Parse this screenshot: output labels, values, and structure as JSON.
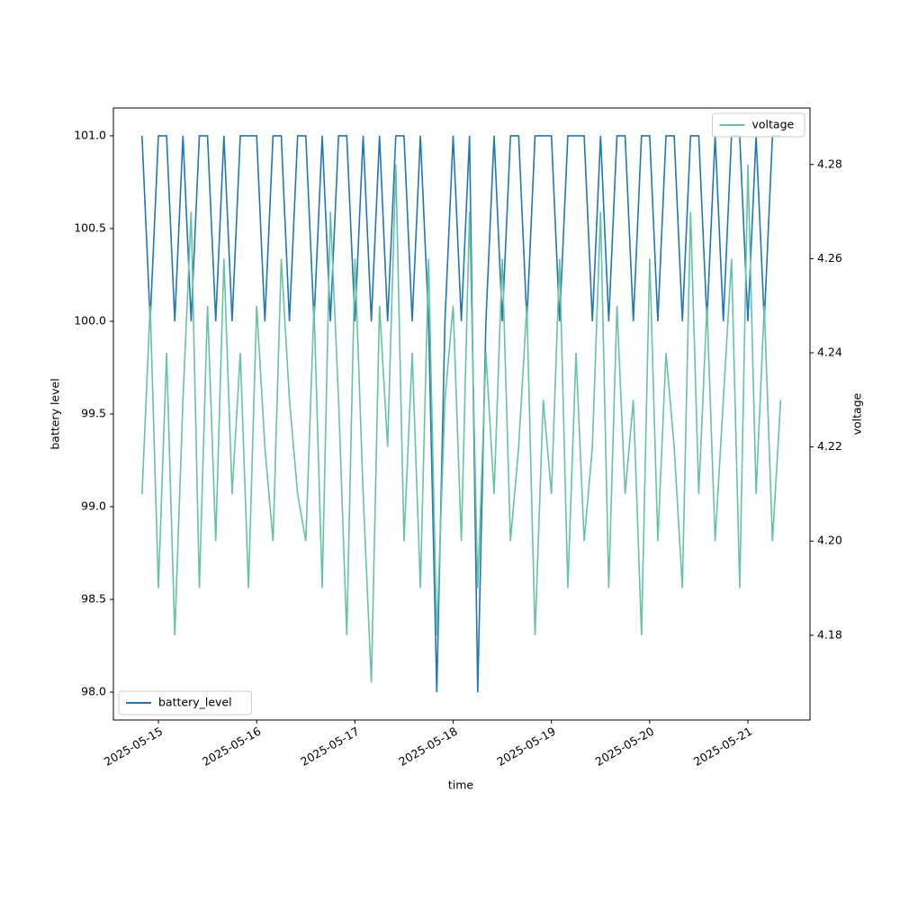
{
  "chart_data": {
    "type": "line",
    "xlabel": "time",
    "ylabel": "battery level",
    "y2label": "voltage",
    "x": [
      "2025-05-14 20:00",
      "2025-05-14 22:00",
      "2025-05-15 00:00",
      "2025-05-15 02:00",
      "2025-05-15 04:00",
      "2025-05-15 06:00",
      "2025-05-15 08:00",
      "2025-05-15 10:00",
      "2025-05-15 12:00",
      "2025-05-15 14:00",
      "2025-05-15 16:00",
      "2025-05-15 18:00",
      "2025-05-15 20:00",
      "2025-05-15 22:00",
      "2025-05-16 00:00",
      "2025-05-16 02:00",
      "2025-05-16 04:00",
      "2025-05-16 06:00",
      "2025-05-16 08:00",
      "2025-05-16 10:00",
      "2025-05-16 12:00",
      "2025-05-16 14:00",
      "2025-05-16 16:00",
      "2025-05-16 18:00",
      "2025-05-16 20:00",
      "2025-05-16 22:00",
      "2025-05-17 00:00",
      "2025-05-17 02:00",
      "2025-05-17 04:00",
      "2025-05-17 06:00",
      "2025-05-17 08:00",
      "2025-05-17 10:00",
      "2025-05-17 12:00",
      "2025-05-17 14:00",
      "2025-05-17 16:00",
      "2025-05-17 18:00",
      "2025-05-17 20:00",
      "2025-05-17 22:00",
      "2025-05-18 00:00",
      "2025-05-18 02:00",
      "2025-05-18 04:00",
      "2025-05-18 06:00",
      "2025-05-18 08:00",
      "2025-05-18 10:00",
      "2025-05-18 12:00",
      "2025-05-18 14:00",
      "2025-05-18 16:00",
      "2025-05-18 18:00",
      "2025-05-18 20:00",
      "2025-05-18 22:00",
      "2025-05-19 00:00",
      "2025-05-19 02:00",
      "2025-05-19 04:00",
      "2025-05-19 06:00",
      "2025-05-19 08:00",
      "2025-05-19 10:00",
      "2025-05-19 12:00",
      "2025-05-19 14:00",
      "2025-05-19 16:00",
      "2025-05-19 18:00",
      "2025-05-19 20:00",
      "2025-05-19 22:00",
      "2025-05-20 00:00",
      "2025-05-20 02:00",
      "2025-05-20 04:00",
      "2025-05-20 06:00",
      "2025-05-20 08:00",
      "2025-05-20 10:00",
      "2025-05-20 12:00",
      "2025-05-20 14:00",
      "2025-05-20 16:00",
      "2025-05-20 18:00",
      "2025-05-20 20:00",
      "2025-05-20 22:00",
      "2025-05-21 00:00",
      "2025-05-21 02:00",
      "2025-05-21 04:00",
      "2025-05-21 06:00",
      "2025-05-21 08:00"
    ],
    "series": [
      {
        "name": "battery_level",
        "color": "#1f77b4",
        "legend": "lower left",
        "values": [
          101,
          100,
          101,
          101,
          100,
          101,
          100,
          101,
          101,
          100,
          101,
          100,
          101,
          101,
          101,
          100,
          101,
          101,
          100,
          101,
          101,
          100,
          101,
          100,
          101,
          101,
          100,
          101,
          100,
          101,
          100,
          101,
          101,
          100,
          101,
          100,
          98,
          100,
          101,
          100,
          101,
          98,
          100,
          101,
          100,
          101,
          101,
          100,
          101,
          101,
          101,
          100,
          101,
          101,
          101,
          100,
          101,
          100,
          101,
          101,
          100,
          101,
          101,
          100,
          101,
          101,
          100,
          101,
          101,
          100,
          101,
          100,
          101,
          101,
          100,
          101,
          100,
          101,
          101
        ]
      },
      {
        "name": "voltage",
        "color": "#66c2a5",
        "axis": "y2",
        "legend": "upper right",
        "values": [
          4.21,
          4.25,
          4.19,
          4.24,
          4.18,
          4.23,
          4.27,
          4.19,
          4.25,
          4.2,
          4.26,
          4.21,
          4.24,
          4.19,
          4.25,
          4.22,
          4.2,
          4.26,
          4.23,
          4.21,
          4.2,
          4.25,
          4.19,
          4.27,
          4.23,
          4.18,
          4.26,
          4.21,
          4.17,
          4.25,
          4.22,
          4.28,
          4.2,
          4.24,
          4.19,
          4.26,
          4.18,
          4.23,
          4.25,
          4.2,
          4.27,
          4.19,
          4.24,
          4.21,
          4.26,
          4.2,
          4.22,
          4.25,
          4.18,
          4.23,
          4.21,
          4.26,
          4.19,
          4.24,
          4.2,
          4.22,
          4.27,
          4.19,
          4.25,
          4.21,
          4.23,
          4.18,
          4.26,
          4.2,
          4.24,
          4.22,
          4.19,
          4.27,
          4.21,
          4.25,
          4.2,
          4.23,
          4.26,
          4.19,
          4.28,
          4.21,
          4.25,
          4.2,
          4.23
        ]
      }
    ],
    "xlim": [
      "2025-05-14 13:00",
      "2025-05-21 15:10"
    ],
    "xticks": [
      "2025-05-15",
      "2025-05-16",
      "2025-05-17",
      "2025-05-18",
      "2025-05-19",
      "2025-05-20",
      "2025-05-21"
    ],
    "ylim": [
      97.85,
      101.15
    ],
    "yticks": [
      {
        "value": 98,
        "label": "98.0"
      },
      98.5,
      {
        "value": 99,
        "label": "99.0"
      },
      99.5,
      {
        "value": 100,
        "label": "100.0"
      },
      100.5,
      {
        "value": 101,
        "label": "101.0"
      }
    ],
    "y2lim": [
      4.162,
      4.292
    ],
    "y2ticks": [
      4.18,
      {
        "value": 4.2,
        "label": "4.20"
      },
      4.22,
      4.24,
      4.26,
      4.28
    ],
    "grid": false
  }
}
